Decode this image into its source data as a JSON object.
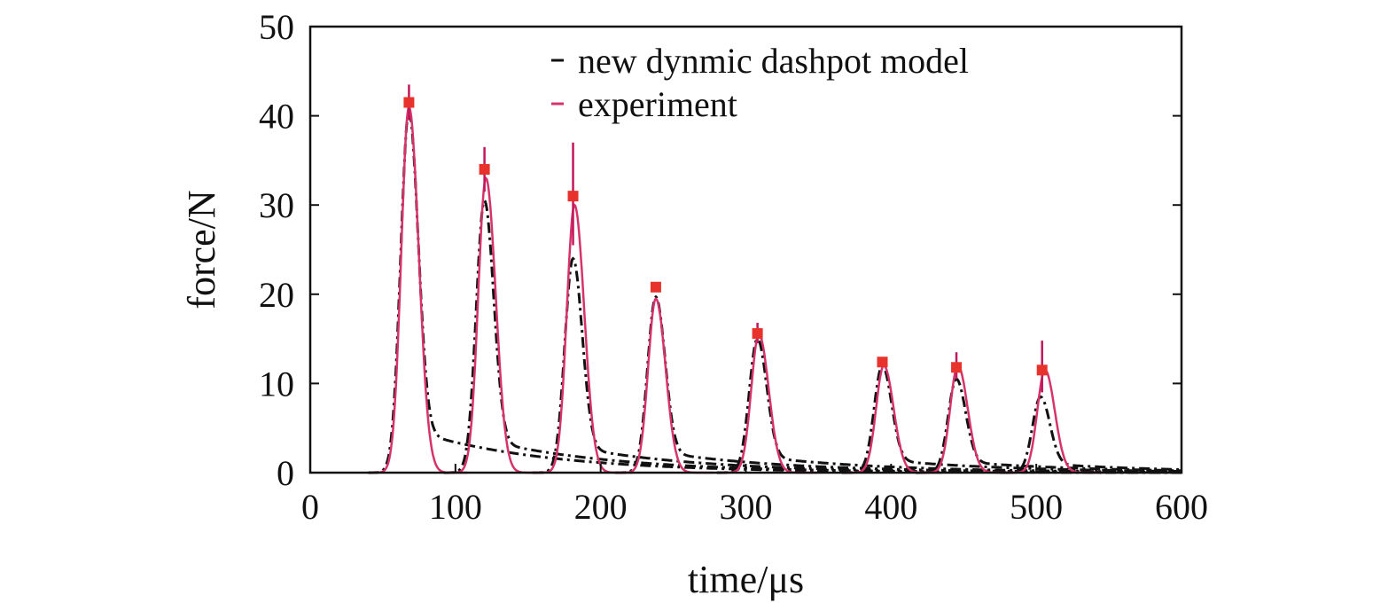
{
  "chart_data": {
    "type": "line",
    "title": "",
    "xlabel": "time/μs",
    "ylabel": "force/N",
    "xlim": [
      0,
      600
    ],
    "ylim": [
      0,
      50
    ],
    "xticks": [
      0,
      100,
      200,
      300,
      400,
      500,
      600
    ],
    "yticks": [
      0,
      10,
      20,
      30,
      40,
      50
    ],
    "grid": false,
    "legend_position": "top-right",
    "series": [
      {
        "name": "new dynmic dashpot model",
        "style": "dash-dot",
        "color": "#111111",
        "pulses": [
          {
            "center": 68,
            "peak": 40.5
          },
          {
            "center": 120,
            "peak": 30.5
          },
          {
            "center": 181,
            "peak": 24.0
          },
          {
            "center": 238,
            "peak": 19.7
          },
          {
            "center": 308,
            "peak": 15.0
          },
          {
            "center": 394,
            "peak": 12.0
          },
          {
            "center": 445,
            "peak": 10.5
          },
          {
            "center": 503,
            "peak": 8.5
          }
        ]
      },
      {
        "name": "experiment",
        "style": "solid",
        "color": "#d6336c",
        "pulses": [
          {
            "center": 68,
            "peak": 41.0
          },
          {
            "center": 121,
            "peak": 33.0
          },
          {
            "center": 182,
            "peak": 30.0
          },
          {
            "center": 238,
            "peak": 19.5
          },
          {
            "center": 309,
            "peak": 15.5
          },
          {
            "center": 395,
            "peak": 12.0
          },
          {
            "center": 446,
            "peak": 12.0
          },
          {
            "center": 506,
            "peak": 11.5
          }
        ]
      }
    ],
    "markers": [
      {
        "x": 68,
        "y": 41.5,
        "err_low": 39.5,
        "err_high": 43.5
      },
      {
        "x": 120,
        "y": 34.0,
        "err_low": 31.5,
        "err_high": 36.5
      },
      {
        "x": 181,
        "y": 31.0,
        "err_low": 25.5,
        "err_high": 37.0
      },
      {
        "x": 238,
        "y": 20.8,
        "err_low": 20.5,
        "err_high": 21.0
      },
      {
        "x": 308,
        "y": 15.6,
        "err_low": 14.5,
        "err_high": 16.8
      },
      {
        "x": 394,
        "y": 12.4,
        "err_low": 12.0,
        "err_high": 12.8
      },
      {
        "x": 445,
        "y": 11.8,
        "err_low": 10.5,
        "err_high": 13.5
      },
      {
        "x": 504,
        "y": 11.5,
        "err_low": 9.0,
        "err_high": 14.8
      }
    ],
    "marker_color": "#e8322c",
    "errorbar_color": "#c2185b"
  }
}
